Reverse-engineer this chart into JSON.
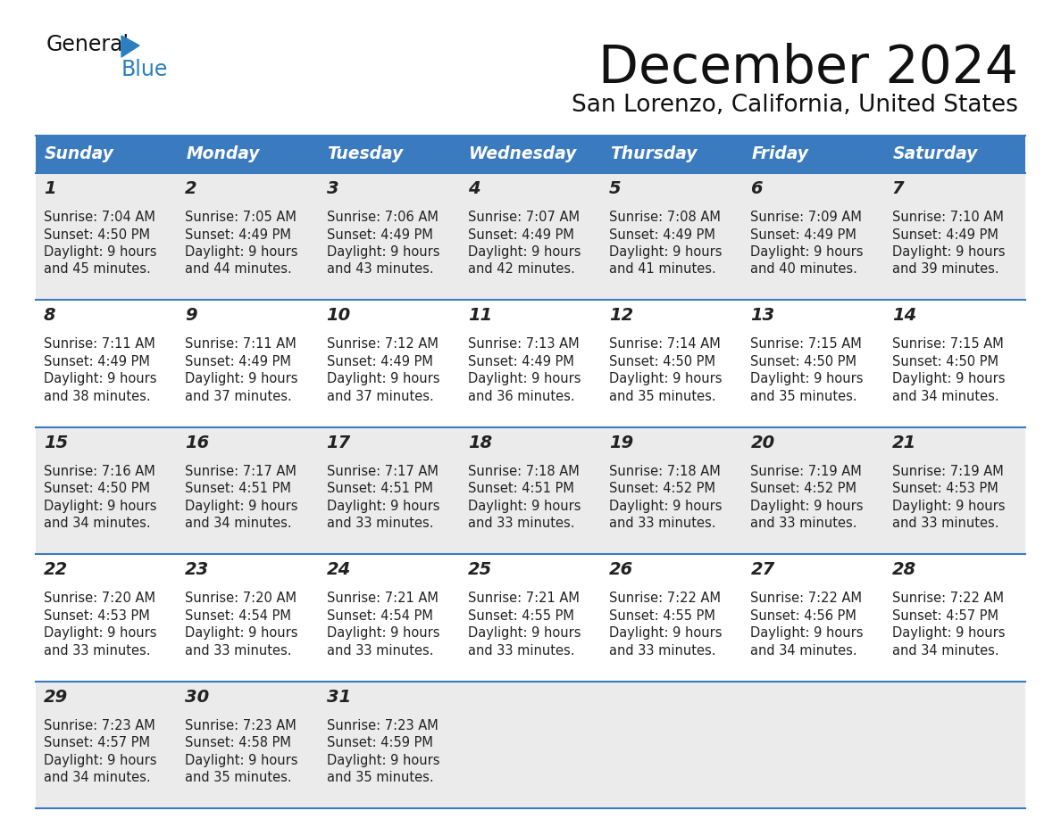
{
  "title": "December 2024",
  "subtitle": "San Lorenzo, California, United States",
  "header_color": "#3a7abf",
  "header_text_color": "#ffffff",
  "days_of_week": [
    "Sunday",
    "Monday",
    "Tuesday",
    "Wednesday",
    "Thursday",
    "Friday",
    "Saturday"
  ],
  "row_even_color": "#ebebeb",
  "row_odd_color": "#ffffff",
  "grid_line_color": "#3a7abf",
  "text_color": "#222222",
  "logo_general_color": "#111111",
  "logo_blue_color": "#2a7fc0",
  "logo_triangle_color": "#2a7fc0",
  "calendar_data": [
    [
      {
        "day": 1,
        "sunrise": "7:04 AM",
        "sunset": "4:50 PM",
        "daylight_h": "9 hours",
        "daylight_m": "and 45 minutes."
      },
      {
        "day": 2,
        "sunrise": "7:05 AM",
        "sunset": "4:49 PM",
        "daylight_h": "9 hours",
        "daylight_m": "and 44 minutes."
      },
      {
        "day": 3,
        "sunrise": "7:06 AM",
        "sunset": "4:49 PM",
        "daylight_h": "9 hours",
        "daylight_m": "and 43 minutes."
      },
      {
        "day": 4,
        "sunrise": "7:07 AM",
        "sunset": "4:49 PM",
        "daylight_h": "9 hours",
        "daylight_m": "and 42 minutes."
      },
      {
        "day": 5,
        "sunrise": "7:08 AM",
        "sunset": "4:49 PM",
        "daylight_h": "9 hours",
        "daylight_m": "and 41 minutes."
      },
      {
        "day": 6,
        "sunrise": "7:09 AM",
        "sunset": "4:49 PM",
        "daylight_h": "9 hours",
        "daylight_m": "and 40 minutes."
      },
      {
        "day": 7,
        "sunrise": "7:10 AM",
        "sunset": "4:49 PM",
        "daylight_h": "9 hours",
        "daylight_m": "and 39 minutes."
      }
    ],
    [
      {
        "day": 8,
        "sunrise": "7:11 AM",
        "sunset": "4:49 PM",
        "daylight_h": "9 hours",
        "daylight_m": "and 38 minutes."
      },
      {
        "day": 9,
        "sunrise": "7:11 AM",
        "sunset": "4:49 PM",
        "daylight_h": "9 hours",
        "daylight_m": "and 37 minutes."
      },
      {
        "day": 10,
        "sunrise": "7:12 AM",
        "sunset": "4:49 PM",
        "daylight_h": "9 hours",
        "daylight_m": "and 37 minutes."
      },
      {
        "day": 11,
        "sunrise": "7:13 AM",
        "sunset": "4:49 PM",
        "daylight_h": "9 hours",
        "daylight_m": "and 36 minutes."
      },
      {
        "day": 12,
        "sunrise": "7:14 AM",
        "sunset": "4:50 PM",
        "daylight_h": "9 hours",
        "daylight_m": "and 35 minutes."
      },
      {
        "day": 13,
        "sunrise": "7:15 AM",
        "sunset": "4:50 PM",
        "daylight_h": "9 hours",
        "daylight_m": "and 35 minutes."
      },
      {
        "day": 14,
        "sunrise": "7:15 AM",
        "sunset": "4:50 PM",
        "daylight_h": "9 hours",
        "daylight_m": "and 34 minutes."
      }
    ],
    [
      {
        "day": 15,
        "sunrise": "7:16 AM",
        "sunset": "4:50 PM",
        "daylight_h": "9 hours",
        "daylight_m": "and 34 minutes."
      },
      {
        "day": 16,
        "sunrise": "7:17 AM",
        "sunset": "4:51 PM",
        "daylight_h": "9 hours",
        "daylight_m": "and 34 minutes."
      },
      {
        "day": 17,
        "sunrise": "7:17 AM",
        "sunset": "4:51 PM",
        "daylight_h": "9 hours",
        "daylight_m": "and 33 minutes."
      },
      {
        "day": 18,
        "sunrise": "7:18 AM",
        "sunset": "4:51 PM",
        "daylight_h": "9 hours",
        "daylight_m": "and 33 minutes."
      },
      {
        "day": 19,
        "sunrise": "7:18 AM",
        "sunset": "4:52 PM",
        "daylight_h": "9 hours",
        "daylight_m": "and 33 minutes."
      },
      {
        "day": 20,
        "sunrise": "7:19 AM",
        "sunset": "4:52 PM",
        "daylight_h": "9 hours",
        "daylight_m": "and 33 minutes."
      },
      {
        "day": 21,
        "sunrise": "7:19 AM",
        "sunset": "4:53 PM",
        "daylight_h": "9 hours",
        "daylight_m": "and 33 minutes."
      }
    ],
    [
      {
        "day": 22,
        "sunrise": "7:20 AM",
        "sunset": "4:53 PM",
        "daylight_h": "9 hours",
        "daylight_m": "and 33 minutes."
      },
      {
        "day": 23,
        "sunrise": "7:20 AM",
        "sunset": "4:54 PM",
        "daylight_h": "9 hours",
        "daylight_m": "and 33 minutes."
      },
      {
        "day": 24,
        "sunrise": "7:21 AM",
        "sunset": "4:54 PM",
        "daylight_h": "9 hours",
        "daylight_m": "and 33 minutes."
      },
      {
        "day": 25,
        "sunrise": "7:21 AM",
        "sunset": "4:55 PM",
        "daylight_h": "9 hours",
        "daylight_m": "and 33 minutes."
      },
      {
        "day": 26,
        "sunrise": "7:22 AM",
        "sunset": "4:55 PM",
        "daylight_h": "9 hours",
        "daylight_m": "and 33 minutes."
      },
      {
        "day": 27,
        "sunrise": "7:22 AM",
        "sunset": "4:56 PM",
        "daylight_h": "9 hours",
        "daylight_m": "and 34 minutes."
      },
      {
        "day": 28,
        "sunrise": "7:22 AM",
        "sunset": "4:57 PM",
        "daylight_h": "9 hours",
        "daylight_m": "and 34 minutes."
      }
    ],
    [
      {
        "day": 29,
        "sunrise": "7:23 AM",
        "sunset": "4:57 PM",
        "daylight_h": "9 hours",
        "daylight_m": "and 34 minutes."
      },
      {
        "day": 30,
        "sunrise": "7:23 AM",
        "sunset": "4:58 PM",
        "daylight_h": "9 hours",
        "daylight_m": "and 35 minutes."
      },
      {
        "day": 31,
        "sunrise": "7:23 AM",
        "sunset": "4:59 PM",
        "daylight_h": "9 hours",
        "daylight_m": "and 35 minutes."
      },
      null,
      null,
      null,
      null
    ]
  ]
}
